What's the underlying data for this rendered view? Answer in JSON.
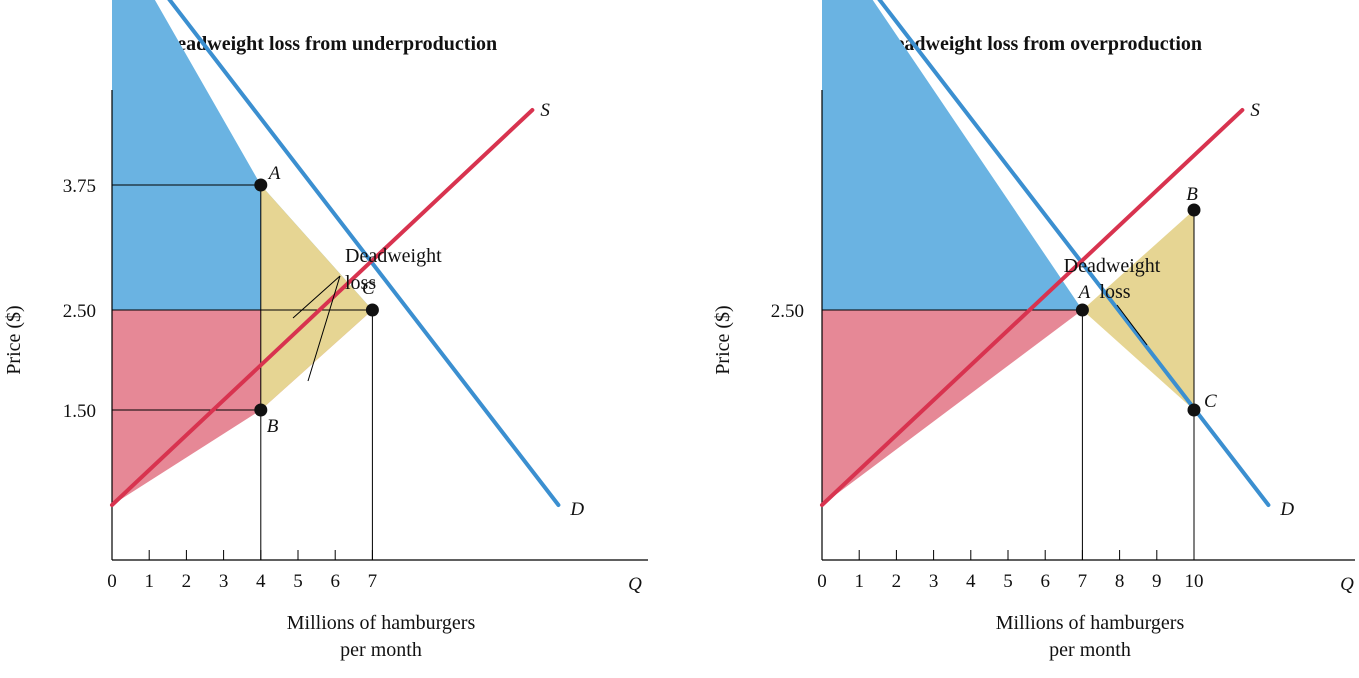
{
  "colors": {
    "consumer_surplus": "#6ab3e2",
    "producer_surplus": "#e68896",
    "deadweight_loss": "#e6d593",
    "demand": "#3b8fd0",
    "supply": "#d8334f",
    "axis": "#000000"
  },
  "chart_data": [
    {
      "type": "line",
      "title": "a. Deadweight loss from underproduction",
      "xlabel_line1": "Millions of hamburgers",
      "xlabel_line2": "per month",
      "ylabel": "Price ($)",
      "x_axis_symbol": "Q",
      "x_ticks": [
        0,
        1,
        2,
        3,
        4,
        5,
        6,
        7
      ],
      "y_tick_labels": [
        {
          "value": 3.75,
          "label": "3.75"
        },
        {
          "value": 2.5,
          "label": "2.50"
        },
        {
          "value": 1.5,
          "label": "1.50"
        }
      ],
      "xlim": [
        0,
        14.4
      ],
      "ylim": [
        0,
        7.0
      ],
      "series": [
        {
          "name": "D",
          "kind": "demand",
          "x": [
            0,
            12
          ],
          "y": [
            6.35,
            0.55
          ]
        },
        {
          "name": "S",
          "kind": "supply",
          "x": [
            0,
            11.3
          ],
          "y": [
            0.55,
            4.5
          ]
        }
      ],
      "points": [
        {
          "label": "A",
          "x": 4,
          "y": 3.75
        },
        {
          "label": "B",
          "x": 4,
          "y": 1.5
        },
        {
          "label": "C",
          "x": 7,
          "y": 2.5
        }
      ],
      "annotation_lines": [
        "Deadweight",
        "loss"
      ]
    },
    {
      "type": "line",
      "title": "b. Deadweight loss from overproduction",
      "xlabel_line1": "Millions of hamburgers",
      "xlabel_line2": "per month",
      "ylabel": "Price ($)",
      "x_axis_symbol": "Q",
      "x_ticks": [
        0,
        1,
        2,
        3,
        4,
        5,
        6,
        7,
        8,
        9,
        10
      ],
      "y_tick_labels": [
        {
          "value": 2.5,
          "label": "2.50"
        }
      ],
      "xlim": [
        0,
        14.4
      ],
      "ylim": [
        0,
        7.0
      ],
      "series": [
        {
          "name": "D",
          "kind": "demand",
          "x": [
            0,
            12
          ],
          "y": [
            6.35,
            0.55
          ]
        },
        {
          "name": "S",
          "kind": "supply",
          "x": [
            0,
            11.3
          ],
          "y": [
            0.55,
            4.5
          ]
        }
      ],
      "points": [
        {
          "label": "A",
          "x": 7,
          "y": 2.5
        },
        {
          "label": "B",
          "x": 10,
          "y": 3.5
        },
        {
          "label": "C",
          "x": 10,
          "y": 1.5
        }
      ],
      "annotation_lines": [
        "Deadweight",
        "loss"
      ]
    }
  ]
}
